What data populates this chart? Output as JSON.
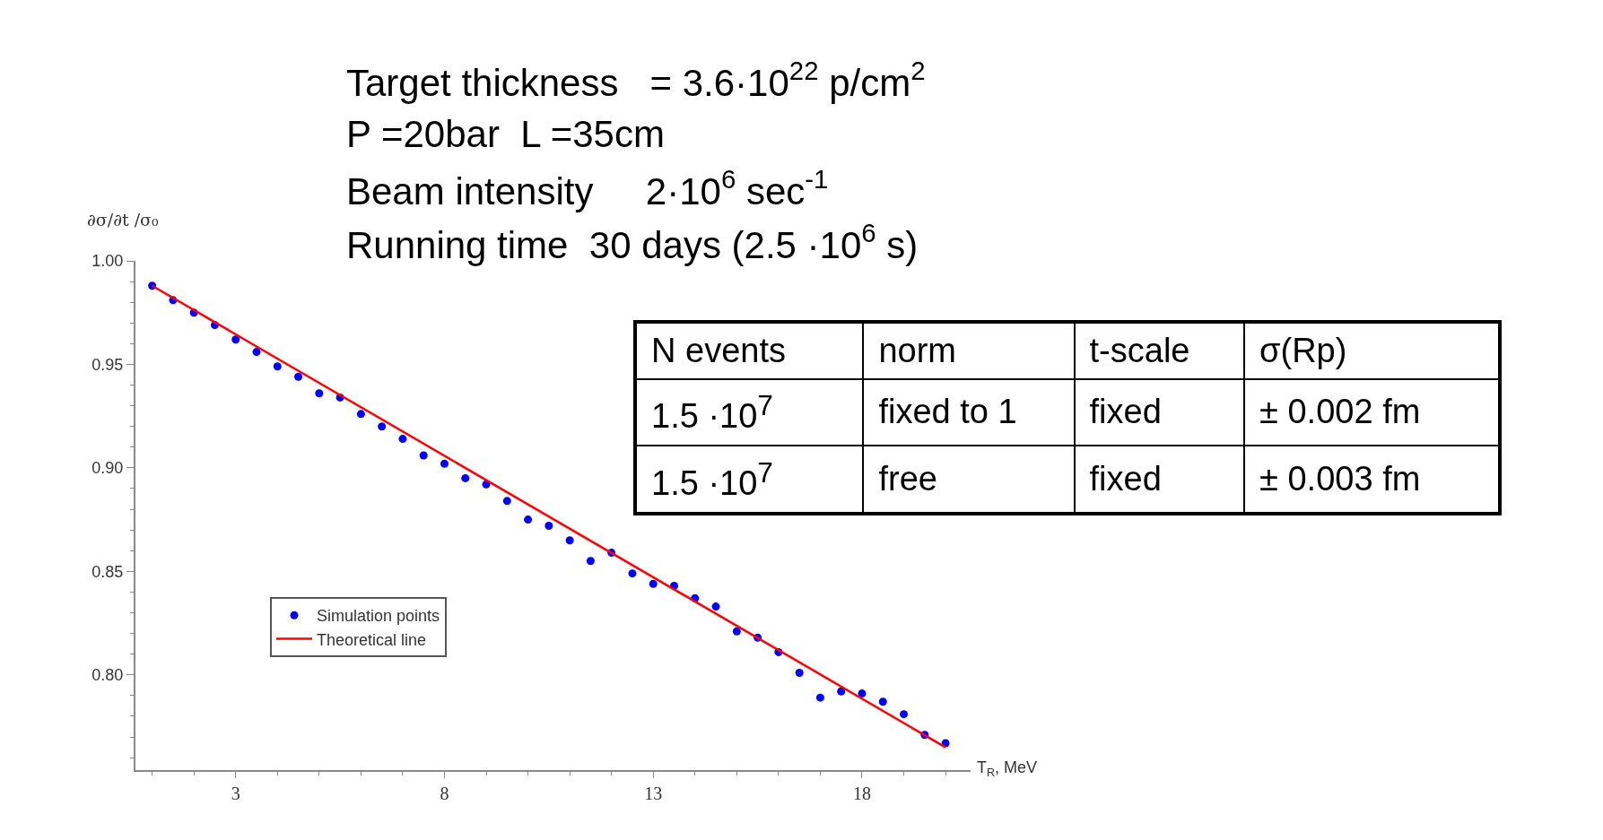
{
  "chart_data": {
    "type": "scatter",
    "xlabel": "T$_{R}$, MeV",
    "ylabel": "∂σ/∂t /σ₀",
    "series": [
      {
        "name": "Simulation points",
        "color": "#0000ff",
        "marker": "circle",
        "x": [
          1,
          1.5,
          2,
          2.5,
          3,
          3.5,
          4,
          4.5,
          5,
          5.5,
          6,
          6.5,
          7,
          7.5,
          8,
          8.5,
          9,
          9.5,
          10,
          10.5,
          11,
          11.5,
          12,
          12.5,
          13,
          13.5,
          14,
          14.5,
          15,
          15.5,
          16,
          16.5,
          17,
          17.5,
          18,
          18.5,
          19,
          19.5,
          20
        ],
        "values": [
          0.988,
          0.981,
          0.975,
          0.969,
          0.962,
          0.956,
          0.949,
          0.944,
          0.936,
          0.934,
          0.926,
          0.92,
          0.914,
          0.906,
          0.902,
          0.895,
          0.892,
          0.884,
          0.875,
          0.872,
          0.865,
          0.855,
          0.859,
          0.849,
          0.844,
          0.843,
          0.837,
          0.833,
          0.821,
          0.818,
          0.811,
          0.801,
          0.789,
          0.792,
          0.791,
          0.787,
          0.781,
          0.771,
          0.767
        ]
      },
      {
        "name": "Theoretical line",
        "type": "line",
        "color": "#ff0000",
        "line_style": "solid",
        "marker": "none",
        "x": [
          1,
          20
        ],
        "values": [
          0.988,
          0.765
        ]
      }
    ],
    "xlim": [
      0.6,
      20.6
    ],
    "ylim": [
      0.754,
      1.0
    ],
    "xticks": [
      3,
      8,
      13,
      18
    ],
    "yticks": [
      {
        "value": 0.8,
        "label": "0.80"
      },
      {
        "value": 0.85,
        "label": "0.85"
      },
      {
        "value": 0.9,
        "label": "0.90"
      },
      {
        "value": 0.95,
        "label": "0.95"
      },
      {
        "value": 1.0,
        "label": "1.00"
      }
    ],
    "grid": false,
    "legend": "bottom left",
    "annotations": [
      "Target thickness   = 3.6·10$^{22}$ p/cm$^{2}$",
      "P =20bar  L =35cm",
      "Beam intensity     2·10$^{6}$ sec$^{-1}$",
      "Running time  30 days (2.5 ·10$^{6}$ s)",
      "N events",
      "norm",
      "t-scale",
      "σ(Rp)",
      "1.5 ·10$^{7}$",
      "fixed to 1",
      "fixed",
      "± 0.002 fm",
      "1.5 ·10$^{7}$",
      "free",
      "fixed",
      "± 0.003 fm"
    ]
  }
}
